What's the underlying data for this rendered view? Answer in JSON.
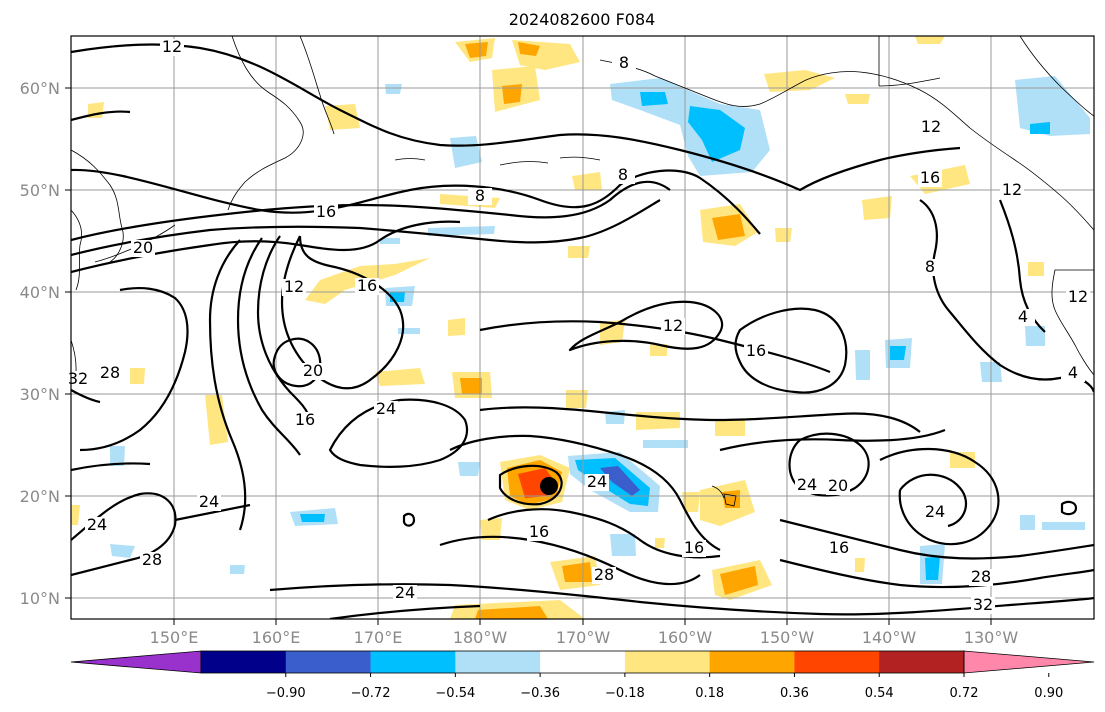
{
  "title": "2024082600 F084",
  "lon_ticks": [
    "150°E",
    "160°E",
    "170°E",
    "180°W",
    "170°W",
    "160°W",
    "150°W",
    "140°W",
    "130°W"
  ],
  "lat_ticks": [
    "10°N",
    "20°N",
    "30°N",
    "40°N",
    "50°N",
    "60°N"
  ],
  "colorbar": {
    "ticks": [
      "−0.90",
      "−0.72",
      "−0.54",
      "−0.36",
      "−0.18",
      "0.18",
      "0.36",
      "0.54",
      "0.72",
      "0.90"
    ],
    "colors": [
      "#9932cc",
      "#00008b",
      "#3a5fcd",
      "#00bfff",
      "#b0e0f7",
      "#ffffff",
      "#ffe680",
      "#ffa500",
      "#ff4500",
      "#b22222",
      "#ff88aa"
    ]
  },
  "contour_labels": [
    "12",
    "8",
    "16",
    "20",
    "12",
    "16",
    "24",
    "28",
    "32",
    "12",
    "16",
    "20",
    "24",
    "16",
    "12",
    "8",
    "16",
    "24",
    "20",
    "24",
    "16",
    "16",
    "16",
    "28",
    "28",
    "24",
    "12",
    "8",
    "4",
    "4",
    "8",
    "24",
    "32",
    "12",
    "28",
    "24"
  ],
  "storm_marker": "tropical-cyclone-center"
}
